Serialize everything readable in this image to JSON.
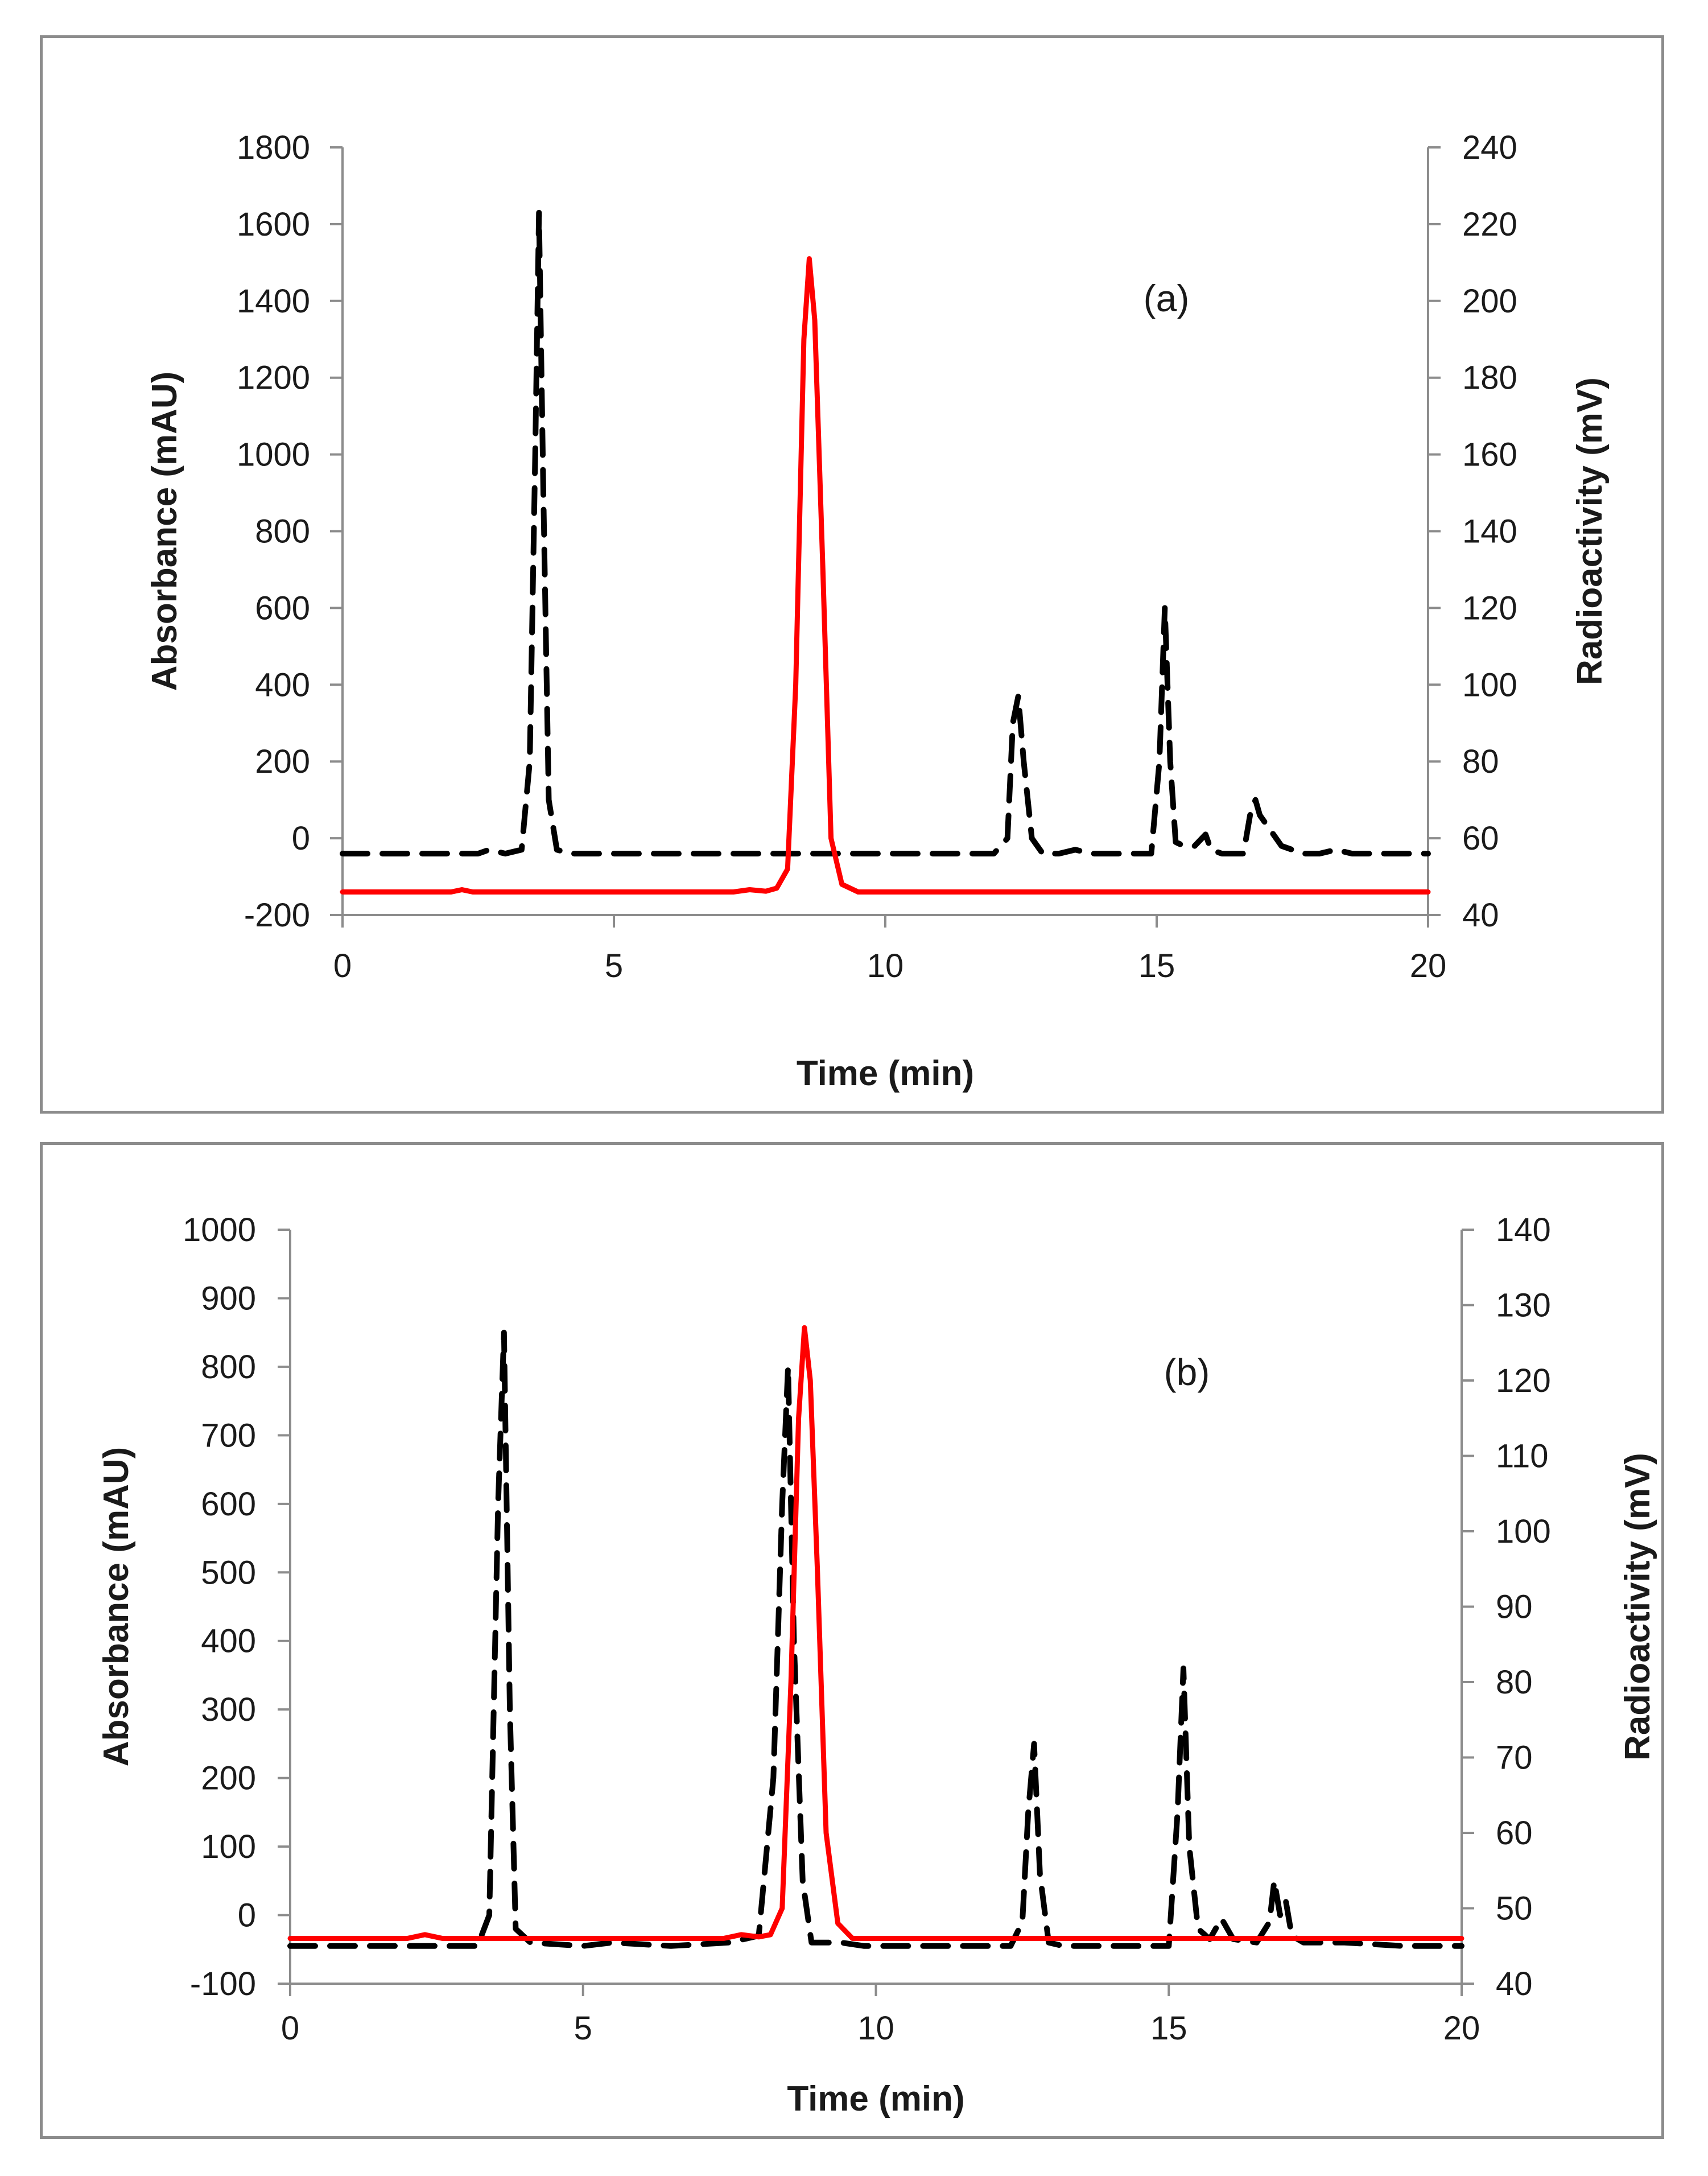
{
  "colors": {
    "absorbance": "#000000",
    "radioactivity": "#ff0000",
    "axis": "#8c8c8c",
    "frame": "#8c8c8c"
  },
  "chart_data": [
    {
      "type": "line",
      "panel_label": "(a)",
      "xlabel": "Time (min)",
      "ylabel_left": "Absorbance (mAU)",
      "ylabel_right": "Radioactivity (mV)",
      "xlim": [
        0,
        20
      ],
      "ylim_left": [
        -200,
        1800
      ],
      "ylim_right": [
        40,
        240
      ],
      "xticks": [
        0,
        5,
        10,
        15,
        20
      ],
      "yticks_left": [
        -200,
        0,
        200,
        400,
        600,
        800,
        1000,
        1200,
        1400,
        1600,
        1800
      ],
      "yticks_right": [
        40,
        60,
        80,
        100,
        120,
        140,
        160,
        180,
        200,
        220,
        240
      ],
      "series": [
        {
          "name": "Absorbance (mAU)",
          "axis": "left",
          "style": "dashed",
          "color": "#000000",
          "x": [
            0,
            2.5,
            2.7,
            3.0,
            3.3,
            3.45,
            3.55,
            3.62,
            3.7,
            3.8,
            3.95,
            4.2,
            12.0,
            12.25,
            12.35,
            12.45,
            12.55,
            12.7,
            12.9,
            13.2,
            13.5,
            13.8,
            14.9,
            15.05,
            15.15,
            15.25,
            15.35,
            15.5,
            15.7,
            15.9,
            16.0,
            16.2,
            16.6,
            16.72,
            16.82,
            16.9,
            17.05,
            17.3,
            17.7,
            18.0,
            18.3,
            18.6,
            20
          ],
          "y": [
            -40,
            -40,
            -30,
            -40,
            -30,
            200,
            1000,
            1630,
            900,
            100,
            -30,
            -40,
            -40,
            0,
            300,
            370,
            200,
            0,
            -40,
            -40,
            -30,
            -40,
            -40,
            200,
            600,
            200,
            -10,
            -20,
            -20,
            10,
            -30,
            -40,
            -40,
            60,
            100,
            60,
            30,
            -20,
            -40,
            -40,
            -30,
            -40,
            -40
          ]
        },
        {
          "name": "Radioactivity (mV)",
          "axis": "right",
          "style": "solid",
          "color": "#ff0000",
          "x": [
            0,
            2.0,
            2.2,
            2.4,
            7.2,
            7.5,
            7.8,
            8.0,
            8.2,
            8.35,
            8.5,
            8.6,
            8.7,
            8.85,
            9.0,
            9.2,
            9.5,
            20
          ],
          "y": [
            46,
            46,
            46.6,
            46,
            46,
            46.6,
            46.2,
            47,
            52,
            100,
            190,
            211,
            195,
            130,
            60,
            48,
            46,
            46
          ]
        }
      ]
    },
    {
      "type": "line",
      "panel_label": "(b)",
      "xlabel": "Time (min)",
      "ylabel_left": "Absorbance (mAU)",
      "ylabel_right": "Radioactivity (mV)",
      "xlim": [
        0,
        20
      ],
      "ylim_left": [
        -100,
        1000
      ],
      "ylim_right": [
        40,
        140
      ],
      "xticks": [
        0,
        5,
        10,
        15,
        20
      ],
      "yticks_left": [
        -100,
        0,
        100,
        200,
        300,
        400,
        500,
        600,
        700,
        800,
        900,
        1000
      ],
      "yticks_right": [
        40,
        50,
        60,
        70,
        80,
        90,
        100,
        110,
        120,
        130,
        140
      ],
      "series": [
        {
          "name": "Absorbance (mAU)",
          "axis": "left",
          "style": "dashed",
          "color": "#000000",
          "x": [
            0,
            3.2,
            3.4,
            3.55,
            3.65,
            3.75,
            3.85,
            4.1,
            5.0,
            5.5,
            6.5,
            7.5,
            8.0,
            8.25,
            8.4,
            8.5,
            8.6,
            8.75,
            8.9,
            9.1,
            9.4,
            9.8,
            10.5,
            11.5,
            12.3,
            12.5,
            12.6,
            12.7,
            12.8,
            12.95,
            13.2,
            13.5,
            15.0,
            15.15,
            15.25,
            15.35,
            15.5,
            15.7,
            15.9,
            16.1,
            16.5,
            16.72,
            16.8,
            16.9,
            17.0,
            17.1,
            17.3,
            18.0,
            19.0,
            20
          ],
          "y": [
            -45,
            -45,
            0,
            600,
            850,
            300,
            -20,
            -40,
            -45,
            -40,
            -45,
            -40,
            -30,
            200,
            600,
            800,
            400,
            50,
            -40,
            -40,
            -40,
            -45,
            -45,
            -45,
            -45,
            -10,
            150,
            250,
            60,
            -40,
            -45,
            -45,
            -45,
            150,
            360,
            100,
            -20,
            -35,
            -5,
            -35,
            -40,
            -10,
            50,
            0,
            20,
            -30,
            -40,
            -40,
            -45,
            -45
          ]
        },
        {
          "name": "Radioactivity (mV)",
          "axis": "right",
          "style": "solid",
          "color": "#ff0000",
          "x": [
            0,
            2.0,
            2.3,
            2.6,
            7.4,
            7.7,
            8.0,
            8.2,
            8.4,
            8.55,
            8.68,
            8.78,
            8.88,
            9.0,
            9.15,
            9.35,
            9.6,
            20
          ],
          "y": [
            46,
            46,
            46.5,
            46,
            46,
            46.5,
            46.2,
            46.5,
            50,
            80,
            115,
            127,
            120,
            95,
            60,
            48,
            46,
            46
          ]
        }
      ]
    }
  ]
}
